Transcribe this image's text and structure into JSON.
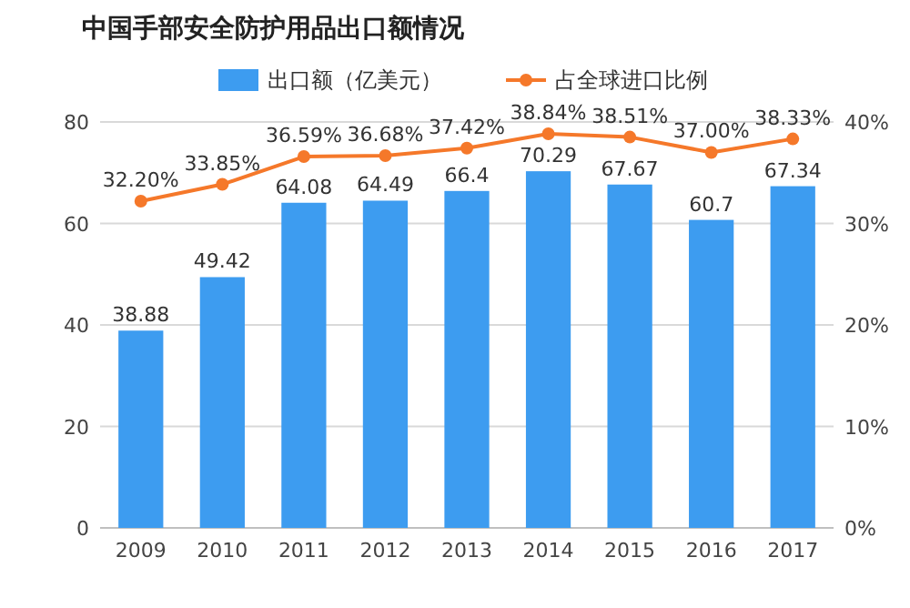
{
  "chart_data": {
    "type": "bar",
    "title": "中国手部安全防护用品出口额情况",
    "categories": [
      "2009",
      "2010",
      "2011",
      "2012",
      "2013",
      "2014",
      "2015",
      "2016",
      "2017"
    ],
    "series": [
      {
        "name": "出口额（亿美元）",
        "color": "#3d9cf0",
        "values": [
          38.88,
          49.42,
          64.08,
          64.49,
          66.4,
          70.29,
          67.67,
          60.7,
          67.34
        ],
        "value_labels": [
          "38.88",
          "49.42",
          "64.08",
          "64.49",
          "66.4",
          "70.29",
          "67.67",
          "60.7",
          "67.34"
        ]
      },
      {
        "name": "占全球进口比例",
        "type": "line",
        "axis": "y2",
        "color": "#f5782a",
        "marker": "circle",
        "values": [
          32.2,
          33.85,
          36.59,
          36.68,
          37.42,
          38.84,
          38.51,
          37.0,
          38.33
        ],
        "value_labels": [
          "32.20%",
          "33.85%",
          "36.59%",
          "36.68%",
          "37.42%",
          "38.84%",
          "38.51%",
          "37.00%",
          "38.33%"
        ]
      }
    ],
    "ylim": [
      0,
      80
    ],
    "yticks": [
      0,
      20,
      40,
      60,
      80
    ],
    "y2lim": [
      0,
      40
    ],
    "y2ticks": [
      {
        "value": 0,
        "label": "0%"
      },
      {
        "value": 10,
        "label": "10%"
      },
      {
        "value": 20,
        "label": "20%"
      },
      {
        "value": 30,
        "label": "30%"
      },
      {
        "value": 40,
        "label": "40%"
      }
    ],
    "grid": "y",
    "legend": "top"
  }
}
